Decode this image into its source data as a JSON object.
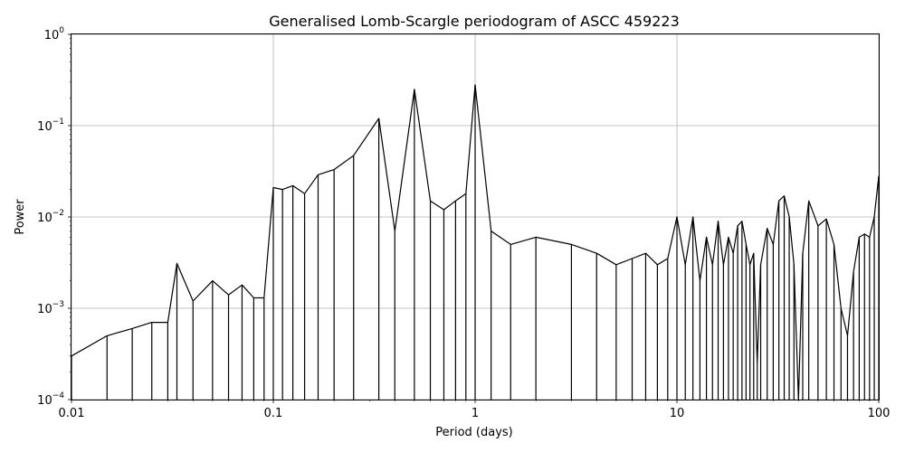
{
  "chart_data": {
    "type": "line",
    "title": "Generalised Lomb-Scargle periodogram of ASCC 459223",
    "xlabel": "Period (days)",
    "ylabel": "Power",
    "xscale": "log",
    "yscale": "log",
    "xlim": [
      0.01,
      100
    ],
    "ylim": [
      0.0001,
      1
    ],
    "grid": true,
    "line_color": "#000000",
    "x_ticks": [
      {
        "value": 0.01,
        "label": "0.01"
      },
      {
        "value": 0.1,
        "label": "0.1"
      },
      {
        "value": 1,
        "label": "1"
      },
      {
        "value": 10,
        "label": "10"
      },
      {
        "value": 100,
        "label": "100"
      }
    ],
    "y_ticks": [
      {
        "value": 0.0001,
        "base": "10",
        "exp": "−4"
      },
      {
        "value": 0.001,
        "base": "10",
        "exp": "−3"
      },
      {
        "value": 0.01,
        "base": "10",
        "exp": "−2"
      },
      {
        "value": 0.1,
        "base": "10",
        "exp": "−1"
      },
      {
        "value": 1,
        "base": "10",
        "exp": "0"
      }
    ],
    "series": [
      {
        "period": [
          0.01,
          0.015,
          0.02,
          0.025,
          0.03,
          0.0333,
          0.04,
          0.05,
          0.06,
          0.07,
          0.08,
          0.09,
          0.1,
          0.1111,
          0.125,
          0.1429,
          0.1667,
          0.2,
          0.25,
          0.3333,
          0.4,
          0.5,
          0.6,
          0.7,
          0.8,
          0.9,
          1.0,
          1.2,
          1.5,
          2.0,
          3.0,
          4.0,
          5.0,
          6.0,
          7.0,
          8.0,
          9.0,
          10.0,
          11.0,
          12.0,
          13.0,
          14.0,
          15.0,
          16.0,
          17.0,
          18.0,
          19.0,
          20.0,
          21.0,
          22.0,
          23.0,
          24.0,
          25.0,
          26.0,
          28.0,
          30.0,
          32.0,
          34.0,
          36.0,
          38.0,
          40.0,
          42.0,
          45.0,
          50.0,
          55.0,
          60.0,
          65.0,
          70.0,
          75.0,
          80.0,
          85.0,
          90.0,
          95.0,
          100.0
        ],
        "power": [
          0.0003,
          0.0005,
          0.0006,
          0.0007,
          0.0007,
          0.0031,
          0.0012,
          0.002,
          0.0014,
          0.0018,
          0.0013,
          0.0013,
          0.021,
          0.02,
          0.022,
          0.018,
          0.029,
          0.033,
          0.047,
          0.12,
          0.007,
          0.25,
          0.015,
          0.012,
          0.015,
          0.018,
          0.28,
          0.007,
          0.005,
          0.006,
          0.005,
          0.004,
          0.003,
          0.0035,
          0.004,
          0.003,
          0.0035,
          0.01,
          0.003,
          0.01,
          0.002,
          0.006,
          0.003,
          0.009,
          0.003,
          0.006,
          0.004,
          0.008,
          0.009,
          0.005,
          0.003,
          0.004,
          0.00025,
          0.003,
          0.0075,
          0.005,
          0.015,
          0.017,
          0.01,
          0.003,
          0.0001,
          0.004,
          0.015,
          0.008,
          0.0095,
          0.005,
          0.001,
          0.0005,
          0.0025,
          0.006,
          0.0065,
          0.006,
          0.01,
          0.028
        ]
      }
    ]
  }
}
